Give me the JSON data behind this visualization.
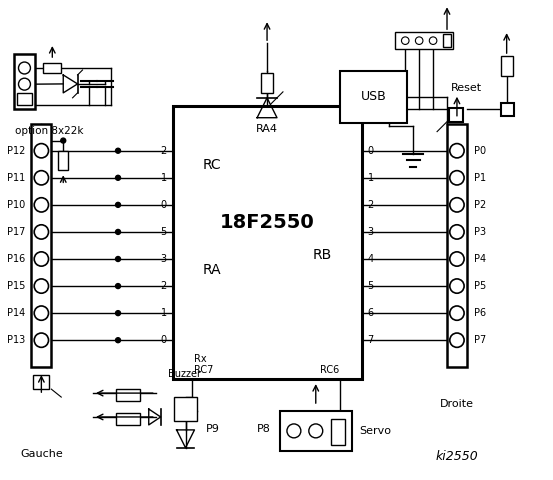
{
  "title": "ki2550",
  "bg_color": "#ffffff",
  "fg_color": "#000000",
  "chip_label": "18F2550",
  "chip_sublabel": "RA4",
  "left_pins_label": "RC",
  "left_pins_sub": "RA",
  "right_pins_label": "RB",
  "left_rc_pins": [
    "2",
    "1",
    "0"
  ],
  "left_ra_pins": [
    "5",
    "3",
    "2",
    "1",
    "0"
  ],
  "right_rb_pins": [
    "0",
    "1",
    "2",
    "3",
    "4",
    "5",
    "6",
    "7"
  ],
  "left_port_labels": [
    "P12",
    "P11",
    "P10",
    "P17",
    "P16",
    "P15",
    "P14",
    "P13"
  ],
  "right_port_labels": [
    "P0",
    "P1",
    "P2",
    "P3",
    "P4",
    "P5",
    "P6",
    "P7"
  ],
  "option_text": "option 8x22k",
  "gauche_text": "Gauche",
  "droite_text": "Droite",
  "servo_text": "Servo",
  "usb_text": "USB",
  "reset_text": "Reset",
  "buzzer_text": "Buzzer",
  "p9_text": "P9",
  "p8_text": "P8",
  "rc6_text": "RC6",
  "rc7_text": "RC7",
  "rx_text": "Rx"
}
